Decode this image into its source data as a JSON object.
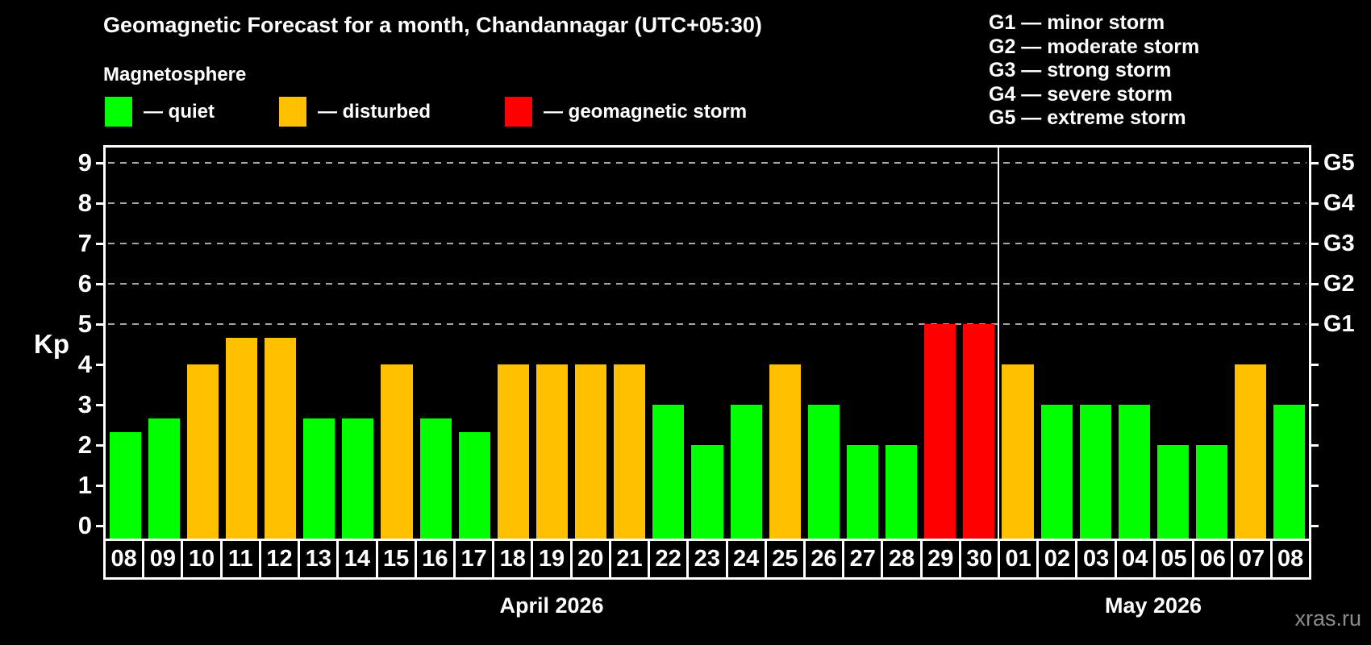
{
  "header": {
    "title": "Geomagnetic Forecast for a month, Chandannagar (UTC+05:30)"
  },
  "legend": {
    "heading": "Magnetosphere",
    "items": [
      {
        "name": "quiet",
        "label": "— quiet",
        "color": "#00ff00"
      },
      {
        "name": "disturbed",
        "label": "— disturbed",
        "color": "#ffc000"
      },
      {
        "name": "storm",
        "label": "— geomagnetic storm",
        "color": "#ff0000"
      }
    ]
  },
  "g_scale_legend": [
    "G1 — minor storm",
    "G2 — moderate storm",
    "G3 — strong storm",
    "G4 — severe storm",
    "G5 — extreme storm"
  ],
  "watermark": "xras.ru",
  "chart_data": {
    "type": "bar",
    "title": "Geomagnetic Forecast for a month, Chandannagar (UTC+05:30)",
    "ylabel": "Kp",
    "ylim": [
      0,
      9
    ],
    "yticks": [
      0,
      1,
      2,
      3,
      4,
      5,
      6,
      7,
      8,
      9
    ],
    "grid_dashed_at_kp": [
      5,
      6,
      7,
      8,
      9
    ],
    "right_axis": {
      "labels": [
        "G1",
        "G2",
        "G3",
        "G4",
        "G5"
      ],
      "at_kp": [
        5,
        6,
        7,
        8,
        9
      ]
    },
    "legend_position": "top-left",
    "months": [
      {
        "label": "April 2026",
        "days": 23
      },
      {
        "label": "May 2026",
        "days": 8
      }
    ],
    "status_colors": {
      "quiet": "#00ff00",
      "disturbed": "#ffc000",
      "storm": "#ff0000"
    },
    "bars": [
      {
        "day": "08",
        "kp": 2.33,
        "status": "quiet"
      },
      {
        "day": "09",
        "kp": 2.67,
        "status": "quiet"
      },
      {
        "day": "10",
        "kp": 4,
        "status": "disturbed"
      },
      {
        "day": "11",
        "kp": 4.67,
        "status": "disturbed"
      },
      {
        "day": "12",
        "kp": 4.67,
        "status": "disturbed"
      },
      {
        "day": "13",
        "kp": 2.67,
        "status": "quiet"
      },
      {
        "day": "14",
        "kp": 2.67,
        "status": "quiet"
      },
      {
        "day": "15",
        "kp": 4,
        "status": "disturbed"
      },
      {
        "day": "16",
        "kp": 2.67,
        "status": "quiet"
      },
      {
        "day": "17",
        "kp": 2.33,
        "status": "quiet"
      },
      {
        "day": "18",
        "kp": 4,
        "status": "disturbed"
      },
      {
        "day": "19",
        "kp": 4,
        "status": "disturbed"
      },
      {
        "day": "20",
        "kp": 4,
        "status": "disturbed"
      },
      {
        "day": "21",
        "kp": 4,
        "status": "disturbed"
      },
      {
        "day": "22",
        "kp": 3,
        "status": "quiet"
      },
      {
        "day": "23",
        "kp": 2,
        "status": "quiet"
      },
      {
        "day": "24",
        "kp": 3,
        "status": "quiet"
      },
      {
        "day": "25",
        "kp": 4,
        "status": "disturbed"
      },
      {
        "day": "26",
        "kp": 3,
        "status": "quiet"
      },
      {
        "day": "27",
        "kp": 2,
        "status": "quiet"
      },
      {
        "day": "28",
        "kp": 2,
        "status": "quiet"
      },
      {
        "day": "29",
        "kp": 5,
        "status": "storm"
      },
      {
        "day": "30",
        "kp": 5,
        "status": "storm"
      },
      {
        "day": "01",
        "kp": 4,
        "status": "disturbed"
      },
      {
        "day": "02",
        "kp": 3,
        "status": "quiet"
      },
      {
        "day": "03",
        "kp": 3,
        "status": "quiet"
      },
      {
        "day": "04",
        "kp": 3,
        "status": "quiet"
      },
      {
        "day": "05",
        "kp": 2,
        "status": "quiet"
      },
      {
        "day": "06",
        "kp": 2,
        "status": "quiet"
      },
      {
        "day": "07",
        "kp": 4,
        "status": "disturbed"
      },
      {
        "day": "08",
        "kp": 3,
        "status": "quiet"
      }
    ]
  }
}
